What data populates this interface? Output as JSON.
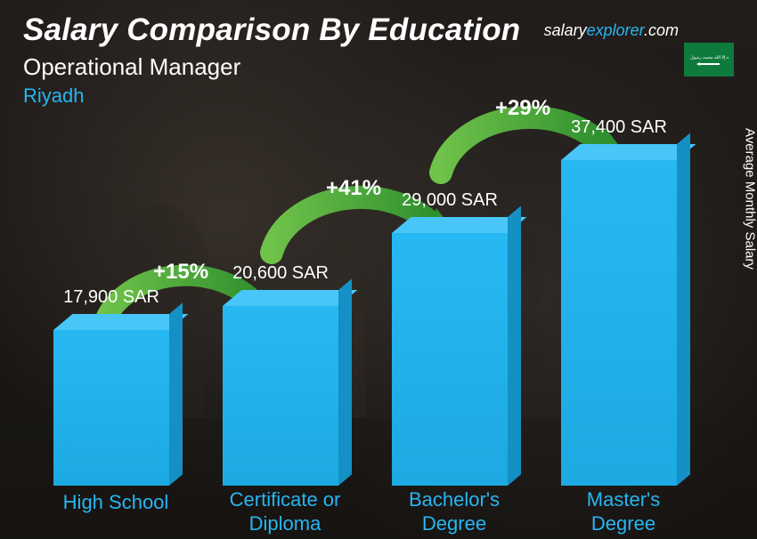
{
  "header": {
    "title": "Salary Comparison By Education",
    "subtitle1": "Operational Manager",
    "subtitle2": "Riyadh"
  },
  "brand": {
    "prefix": "salary",
    "mid": "explorer",
    "suffix": ".com"
  },
  "ylabel": "Average Monthly Salary",
  "chart": {
    "type": "bar",
    "bar_color": "#27b8f3",
    "bar_top_color": "#48c6f7",
    "bar_side_color": "#1590c4",
    "value_color": "#ffffff",
    "label_color": "#26b6f2",
    "arc_color": "#3fa23c",
    "arc_label_color": "#ffffff",
    "background": "#1a1815",
    "currency": "SAR",
    "max_value": 37400,
    "bars": [
      {
        "label": "High School",
        "value": 17900,
        "display": "17,900 SAR"
      },
      {
        "label": "Certificate or\nDiploma",
        "value": 20600,
        "display": "20,600 SAR"
      },
      {
        "label": "Bachelor's\nDegree",
        "value": 29000,
        "display": "29,000 SAR"
      },
      {
        "label": "Master's\nDegree",
        "value": 37400,
        "display": "37,400 SAR"
      }
    ],
    "arcs": [
      {
        "label": "+15%"
      },
      {
        "label": "+41%"
      },
      {
        "label": "+29%"
      }
    ]
  },
  "flag": {
    "country": "Saudi Arabia",
    "bg": "#0e7a3c"
  }
}
